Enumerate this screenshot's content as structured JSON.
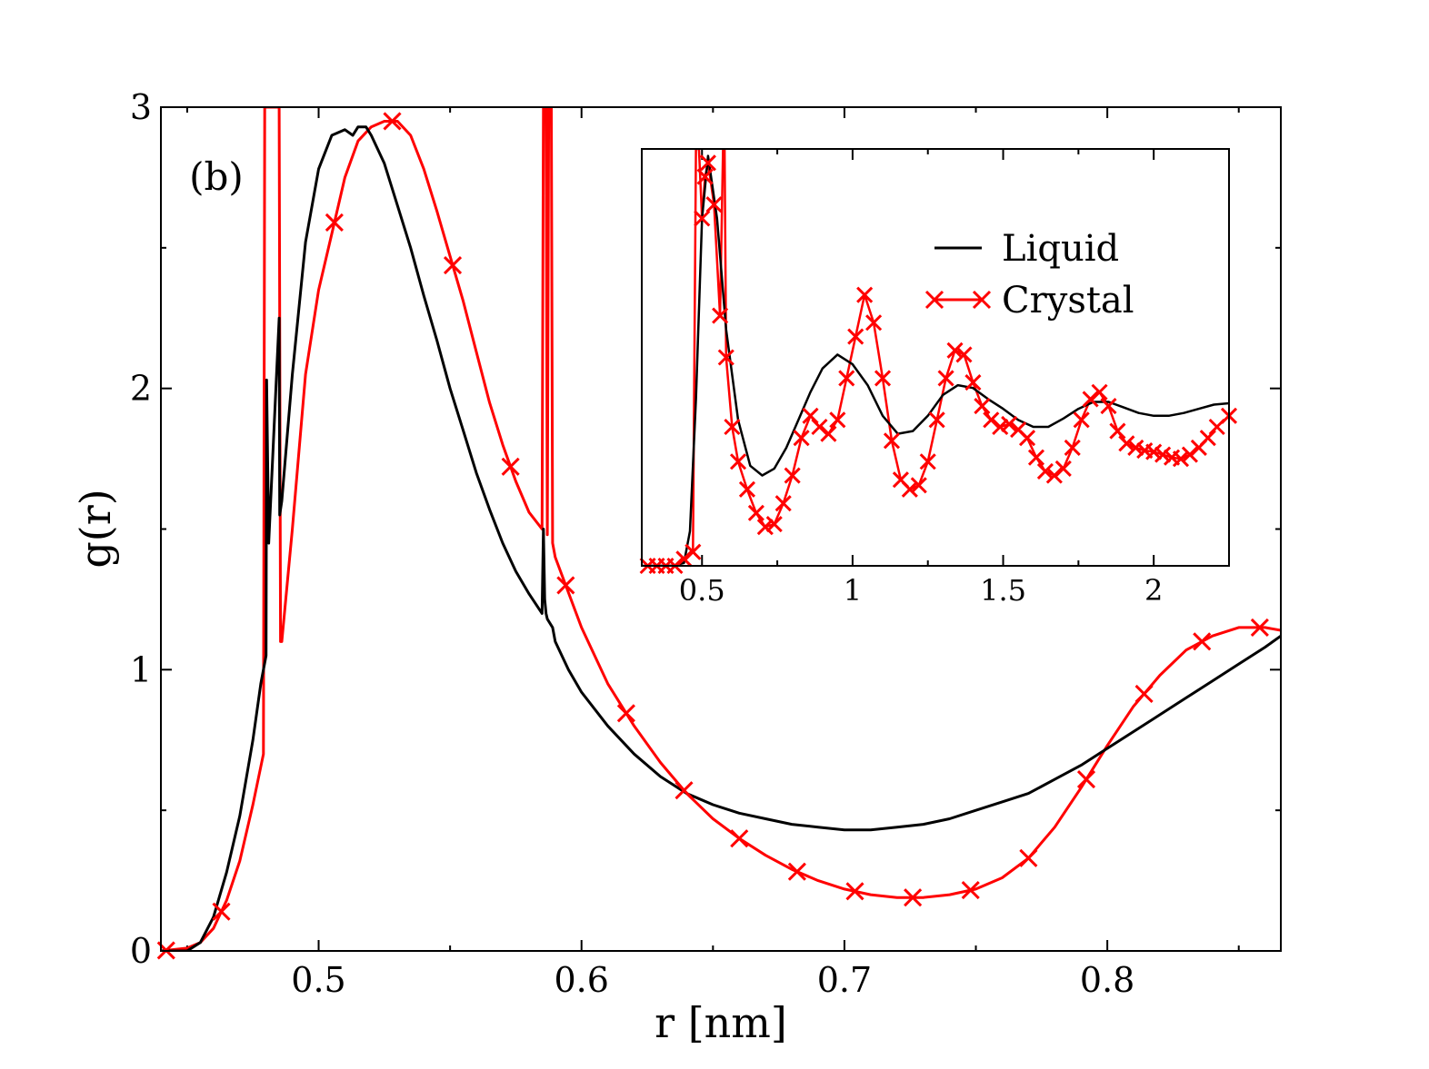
{
  "chart_data": {
    "type": "line",
    "panel_label": "(b)",
    "xlabel": "r [nm]",
    "ylabel": "g(r)",
    "xlim": [
      0.44,
      0.866
    ],
    "ylim": [
      0,
      3
    ],
    "xticks": [
      0.5,
      0.6,
      0.7,
      0.8
    ],
    "xtick_labels": [
      "0.5",
      "0.6",
      "0.7",
      "0.8"
    ],
    "yticks": [
      0,
      1,
      2,
      3
    ],
    "ytick_labels": [
      "0",
      "1",
      "2",
      "3"
    ],
    "colors": {
      "liquid": "#000000",
      "crystal": "#ff0000"
    },
    "series": [
      {
        "name": "Liquid",
        "marker": "none",
        "x": [
          0.44,
          0.45,
          0.455,
          0.46,
          0.465,
          0.47,
          0.475,
          0.478,
          0.48,
          0.4802,
          0.481,
          0.485,
          0.4852,
          0.486,
          0.49,
          0.495,
          0.5,
          0.505,
          0.51,
          0.513,
          0.515,
          0.518,
          0.52,
          0.525,
          0.53,
          0.535,
          0.54,
          0.545,
          0.55,
          0.555,
          0.56,
          0.565,
          0.57,
          0.575,
          0.58,
          0.585,
          0.5855,
          0.586,
          0.5865,
          0.587,
          0.589,
          0.59,
          0.595,
          0.6,
          0.61,
          0.62,
          0.63,
          0.64,
          0.65,
          0.66,
          0.67,
          0.68,
          0.69,
          0.7,
          0.71,
          0.72,
          0.73,
          0.74,
          0.75,
          0.76,
          0.77,
          0.78,
          0.79,
          0.8,
          0.81,
          0.82,
          0.83,
          0.84,
          0.85,
          0.86,
          0.866
        ],
        "y": [
          0.0,
          0.0,
          0.03,
          0.12,
          0.28,
          0.48,
          0.75,
          0.95,
          1.05,
          2.03,
          1.45,
          2.25,
          1.55,
          1.6,
          2.05,
          2.52,
          2.78,
          2.9,
          2.92,
          2.9,
          2.93,
          2.93,
          2.9,
          2.8,
          2.65,
          2.5,
          2.33,
          2.17,
          2.0,
          1.85,
          1.7,
          1.57,
          1.45,
          1.35,
          1.27,
          1.2,
          1.5,
          1.25,
          1.2,
          1.18,
          1.15,
          1.1,
          1.0,
          0.92,
          0.8,
          0.7,
          0.62,
          0.56,
          0.52,
          0.49,
          0.47,
          0.45,
          0.44,
          0.43,
          0.43,
          0.44,
          0.45,
          0.47,
          0.5,
          0.53,
          0.56,
          0.61,
          0.66,
          0.72,
          0.78,
          0.84,
          0.9,
          0.96,
          1.02,
          1.08,
          1.12
        ]
      },
      {
        "name": "Crystal",
        "marker": "x",
        "x": [
          0.44,
          0.45,
          0.455,
          0.46,
          0.465,
          0.47,
          0.475,
          0.479,
          0.4795,
          0.48,
          0.4805,
          0.485,
          0.4855,
          0.486,
          0.49,
          0.495,
          0.5,
          0.505,
          0.51,
          0.515,
          0.52,
          0.525,
          0.53,
          0.535,
          0.54,
          0.545,
          0.55,
          0.555,
          0.56,
          0.565,
          0.57,
          0.575,
          0.58,
          0.585,
          0.5855,
          0.5865,
          0.587,
          0.5875,
          0.5885,
          0.589,
          0.59,
          0.6,
          0.61,
          0.62,
          0.63,
          0.64,
          0.65,
          0.66,
          0.67,
          0.68,
          0.69,
          0.7,
          0.71,
          0.72,
          0.73,
          0.74,
          0.75,
          0.76,
          0.77,
          0.78,
          0.79,
          0.8,
          0.81,
          0.82,
          0.83,
          0.84,
          0.85,
          0.86,
          0.866
        ],
        "y": [
          0.0,
          0.01,
          0.03,
          0.08,
          0.18,
          0.32,
          0.52,
          0.7,
          3.0,
          3.0,
          3.0,
          3.0,
          1.1,
          1.1,
          1.5,
          2.05,
          2.35,
          2.55,
          2.75,
          2.88,
          2.93,
          2.95,
          2.95,
          2.9,
          2.78,
          2.63,
          2.47,
          2.31,
          2.13,
          1.95,
          1.8,
          1.67,
          1.56,
          1.5,
          3.0,
          3.0,
          1.48,
          3.0,
          3.0,
          1.45,
          1.4,
          1.15,
          0.95,
          0.8,
          0.67,
          0.56,
          0.47,
          0.4,
          0.34,
          0.29,
          0.25,
          0.22,
          0.2,
          0.19,
          0.19,
          0.2,
          0.22,
          0.26,
          0.33,
          0.44,
          0.58,
          0.73,
          0.87,
          0.98,
          1.07,
          1.12,
          1.15,
          1.15,
          1.14
        ]
      }
    ],
    "inset": {
      "type": "line",
      "xlim": [
        0.3,
        2.25
      ],
      "ylim": [
        0,
        3.0
      ],
      "xticks": [
        0.5,
        1,
        1.5,
        2
      ],
      "xtick_labels": [
        "0.5",
        "1",
        "1.5",
        "2"
      ],
      "legend": [
        "Liquid",
        "Crystal"
      ],
      "series": [
        {
          "name": "Liquid",
          "marker": "none",
          "x": [
            0.3,
            0.4,
            0.44,
            0.46,
            0.48,
            0.5,
            0.52,
            0.55,
            0.58,
            0.62,
            0.66,
            0.7,
            0.74,
            0.78,
            0.82,
            0.86,
            0.9,
            0.95,
            1.0,
            1.05,
            1.1,
            1.15,
            1.2,
            1.25,
            1.3,
            1.35,
            1.4,
            1.45,
            1.5,
            1.55,
            1.6,
            1.65,
            1.7,
            1.75,
            1.8,
            1.85,
            1.9,
            1.95,
            2.0,
            2.05,
            2.1,
            2.15,
            2.2,
            2.25
          ],
          "y": [
            0.0,
            0.0,
            0.02,
            0.25,
            1.2,
            2.5,
            2.95,
            2.5,
            1.7,
            1.05,
            0.72,
            0.65,
            0.7,
            0.85,
            1.05,
            1.25,
            1.42,
            1.52,
            1.45,
            1.3,
            1.08,
            0.95,
            0.97,
            1.08,
            1.23,
            1.3,
            1.28,
            1.2,
            1.13,
            1.05,
            1.0,
            1.0,
            1.06,
            1.13,
            1.18,
            1.18,
            1.14,
            1.1,
            1.08,
            1.08,
            1.1,
            1.13,
            1.16,
            1.17
          ]
        },
        {
          "name": "Crystal",
          "marker": "x",
          "x": [
            0.32,
            0.35,
            0.38,
            0.41,
            0.44,
            0.47,
            0.48,
            0.49,
            0.5,
            0.51,
            0.52,
            0.54,
            0.56,
            0.57,
            0.575,
            0.58,
            0.6,
            0.62,
            0.65,
            0.68,
            0.71,
            0.74,
            0.77,
            0.8,
            0.83,
            0.86,
            0.89,
            0.92,
            0.95,
            0.98,
            1.01,
            1.04,
            1.07,
            1.1,
            1.13,
            1.16,
            1.19,
            1.22,
            1.25,
            1.28,
            1.31,
            1.34,
            1.37,
            1.4,
            1.43,
            1.46,
            1.49,
            1.52,
            1.55,
            1.58,
            1.61,
            1.64,
            1.67,
            1.7,
            1.73,
            1.76,
            1.79,
            1.82,
            1.85,
            1.88,
            1.91,
            1.94,
            1.97,
            2.0,
            2.03,
            2.06,
            2.09,
            2.12,
            2.15,
            2.18,
            2.21,
            2.25
          ],
          "y": [
            0.0,
            0.0,
            0.0,
            0.0,
            0.05,
            0.1,
            3.0,
            3.0,
            2.5,
            2.8,
            2.9,
            2.6,
            1.8,
            3.0,
            3.0,
            1.5,
            1.0,
            0.75,
            0.55,
            0.38,
            0.28,
            0.3,
            0.45,
            0.65,
            0.92,
            1.08,
            1.0,
            0.95,
            1.05,
            1.35,
            1.65,
            1.95,
            1.75,
            1.35,
            0.9,
            0.62,
            0.55,
            0.58,
            0.75,
            1.05,
            1.35,
            1.55,
            1.52,
            1.32,
            1.15,
            1.05,
            1.0,
            1.02,
            0.98,
            0.92,
            0.78,
            0.68,
            0.65,
            0.7,
            0.85,
            1.05,
            1.2,
            1.25,
            1.15,
            0.97,
            0.88,
            0.85,
            0.83,
            0.82,
            0.8,
            0.78,
            0.77,
            0.8,
            0.85,
            0.92,
            1.0,
            1.08
          ]
        }
      ]
    }
  }
}
